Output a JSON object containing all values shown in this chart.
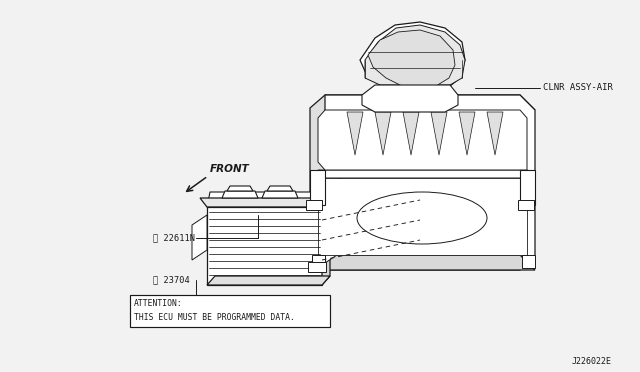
{
  "bg_color": "#f2f2f2",
  "line_color": "#1a1a1a",
  "diagram_id": "J226022E",
  "label_clnr": "CLNR ASSY-AIR",
  "label_front": "FRONT",
  "label_22611n": "※ 22611N",
  "label_23704": "※ 23704",
  "attention_line1": "ATTENTION:",
  "attention_line2": "THIS ECU MUST BE PROGRAMMED DATA.",
  "fig_width": 6.4,
  "fig_height": 3.72,
  "dpi": 100
}
